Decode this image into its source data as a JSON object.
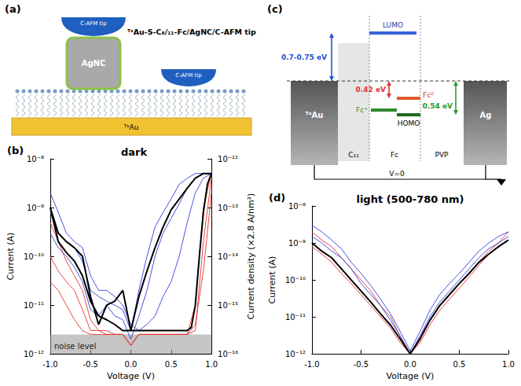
{
  "chart_data": [
    {
      "type": "line",
      "panel": "(b)",
      "title": "dark",
      "x_label": "Voltage (V)",
      "y_label": "Current (A)",
      "y2_label": "Current density (×2.8 A/nm²)",
      "log": "y",
      "grid": false,
      "xlim": [
        -1,
        1
      ],
      "xticks": [
        {
          "value": -1,
          "label": "-1.0"
        },
        {
          "value": -0.5,
          "label": "-0.5"
        },
        {
          "value": 0,
          "label": "0.0"
        },
        {
          "value": 0.5,
          "label": "0.5"
        },
        {
          "value": 1,
          "label": "1.0"
        }
      ],
      "ylim": [
        1e-12,
        1e-08
      ],
      "yticks": [
        {
          "value": 1e-12,
          "label": "10⁻¹²"
        },
        {
          "value": 1e-11,
          "label": "10⁻¹¹"
        },
        {
          "value": 1e-10,
          "label": "10⁻¹⁰"
        },
        {
          "value": 1e-09,
          "label": "10⁻⁹"
        },
        {
          "value": 1e-08,
          "label": "10⁻⁸"
        }
      ],
      "y2lim": [
        1e-16,
        1e-12
      ],
      "y2ticks": [
        {
          "value": 1e-16,
          "label": "10⁻¹⁶"
        },
        {
          "value": 1e-15,
          "label": "10⁻¹⁵"
        },
        {
          "value": 1e-14,
          "label": "10⁻¹⁴"
        },
        {
          "value": 1e-13,
          "label": "10⁻¹³"
        },
        {
          "value": 1e-12,
          "label": "10⁻¹²"
        }
      ],
      "noise_level": {
        "value": 2.5e-12,
        "label": "noise level"
      },
      "x": [
        -1,
        -0.9,
        -0.8,
        -0.7,
        -0.6,
        -0.5,
        -0.4,
        -0.3,
        -0.2,
        -0.1,
        0,
        0.1,
        0.2,
        0.3,
        0.4,
        0.5,
        0.6,
        0.7,
        0.8,
        0.9,
        1
      ],
      "series": [
        {
          "color": "#e8302f",
          "values": [
            1e-10,
            5e-11,
            3e-11,
            2e-11,
            8e-12,
            3e-12,
            3e-12,
            2.5e-12,
            2.5e-12,
            2.5e-12,
            1.5e-12,
            2.5e-12,
            2.5e-12,
            2.5e-12,
            2.5e-12,
            2.5e-12,
            2.5e-12,
            2.5e-12,
            3e-12,
            2e-10,
            4e-09
          ]
        },
        {
          "color": "#e8302f",
          "values": [
            3e-11,
            2e-11,
            1e-11,
            5e-12,
            3e-12,
            2.5e-12,
            2.5e-12,
            2.5e-12,
            2.5e-12,
            2.5e-12,
            1.5e-12,
            2.5e-12,
            2.5e-12,
            2.5e-12,
            2.5e-12,
            2.5e-12,
            2.5e-12,
            2.5e-12,
            1e-11,
            1e-09,
            5e-09
          ]
        },
        {
          "color": "#e8302f",
          "values": [
            5e-10,
            2e-10,
            8e-11,
            4e-11,
            2e-11,
            5e-12,
            3e-12,
            3e-12,
            2.5e-12,
            2.5e-12,
            1.5e-12,
            2.5e-12,
            2.5e-12,
            2.5e-12,
            2.5e-12,
            2.5e-12,
            2.5e-12,
            2.5e-12,
            4e-12,
            5e-11,
            2e-09
          ]
        },
        {
          "color": "#2f3fe0",
          "values": [
            8e-10,
            3e-10,
            2e-10,
            1.5e-10,
            8e-11,
            2e-11,
            1.5e-11,
            1.2e-11,
            1e-11,
            8e-12,
            3e-12,
            2e-11,
            1e-10,
            4e-10,
            8e-10,
            1.5e-09,
            3e-09,
            4e-09,
            5e-09,
            5e-09,
            5e-09
          ]
        },
        {
          "color": "#2f3fe0",
          "values": [
            3e-10,
            1.5e-10,
            1e-10,
            6e-11,
            3e-11,
            8e-12,
            6e-12,
            1e-11,
            6e-12,
            5e-12,
            2e-12,
            6e-12,
            2e-11,
            1e-10,
            3e-10,
            6e-10,
            1.2e-09,
            2.5e-09,
            4e-09,
            5e-09,
            5e-09
          ]
        },
        {
          "color": "#2f3fe0",
          "values": [
            2e-09,
            8e-10,
            3e-10,
            2e-10,
            1.5e-10,
            4e-11,
            2e-11,
            2e-11,
            1.5e-11,
            1e-11,
            4e-12,
            3e-12,
            4e-12,
            6e-12,
            1.5e-11,
            3e-11,
            1e-10,
            5e-10,
            2e-09,
            4e-09,
            5e-09
          ]
        },
        {
          "color": "#000000",
          "line_style": "thick",
          "x": [
            0,
            0.1,
            0.2,
            0.3,
            0.4,
            0.5,
            0.6,
            0.7,
            0.75,
            0.8,
            0.85,
            0.9,
            0.95,
            1,
            0.9,
            0.8,
            0.7,
            0.6,
            0.5,
            0.4,
            0.3,
            0.2,
            0.1,
            0,
            -0.1,
            -0.2,
            -0.3,
            -0.4,
            -0.5,
            -0.6,
            -0.7,
            -0.8,
            -0.9,
            -1,
            -0.9,
            -0.8,
            -0.7,
            -0.6,
            -0.5,
            -0.4,
            -0.3,
            -0.2,
            -0.1,
            0
          ],
          "values": [
            3e-12,
            3e-12,
            3e-12,
            3e-12,
            3e-12,
            3e-12,
            3e-12,
            3e-12,
            3.5e-12,
            1e-11,
            1e-10,
            8e-10,
            3e-09,
            5e-09,
            5e-09,
            4e-09,
            2.5e-09,
            1.5e-09,
            9e-10,
            4e-10,
            1.5e-10,
            5e-11,
            1.5e-11,
            3e-12,
            2e-11,
            1.2e-11,
            1e-11,
            4e-12,
            1.5e-11,
            1e-10,
            1.5e-10,
            2e-10,
            3e-10,
            1e-09,
            2e-10,
            1.2e-10,
            8e-11,
            4e-11,
            1.2e-11,
            6e-12,
            5e-12,
            4e-12,
            3e-12,
            3e-12
          ]
        }
      ]
    },
    {
      "type": "line",
      "panel": "(d)",
      "title": "light (500-780 nm)",
      "x_label": "Voltage (V)",
      "y_label": "Current (A)",
      "log": "y",
      "grid": false,
      "xlim": [
        -1,
        1
      ],
      "xticks": [
        {
          "value": -1,
          "label": "-1.0"
        },
        {
          "value": -0.5,
          "label": "-0.5"
        },
        {
          "value": 0,
          "label": "0.0"
        },
        {
          "value": 0.5,
          "label": "0.5"
        },
        {
          "value": 1,
          "label": "1.0"
        }
      ],
      "ylim": [
        1e-12,
        1e-08
      ],
      "yticks": [
        {
          "value": 1e-12,
          "label": "10⁻¹²"
        },
        {
          "value": 1e-11,
          "label": "10⁻¹¹"
        },
        {
          "value": 1e-10,
          "label": "10⁻¹⁰"
        },
        {
          "value": 1e-09,
          "label": "10⁻⁹"
        },
        {
          "value": 1e-08,
          "label": "10⁻⁸"
        }
      ],
      "x": [
        -1,
        -0.9,
        -0.8,
        -0.7,
        -0.6,
        -0.5,
        -0.4,
        -0.3,
        -0.2,
        -0.1,
        0,
        0.1,
        0.2,
        0.3,
        0.4,
        0.5,
        0.6,
        0.7,
        0.8,
        0.9,
        1
      ],
      "series": [
        {
          "color": "#e8302f",
          "values": [
            8e-10,
            5e-10,
            3e-10,
            1.5e-10,
            8e-11,
            4e-11,
            2e-11,
            1e-11,
            5e-12,
            2e-12,
            1e-12,
            2e-12,
            6e-12,
            1.5e-11,
            3e-11,
            6e-11,
            1.2e-10,
            2.5e-10,
            5e-10,
            8e-10,
            1.2e-09
          ]
        },
        {
          "color": "#e8302f",
          "values": [
            2e-09,
            1.2e-09,
            8e-10,
            4e-10,
            2e-10,
            1e-10,
            5e-11,
            2e-11,
            1e-11,
            3e-12,
            1e-12,
            3e-12,
            8e-12,
            2e-11,
            4e-11,
            8e-11,
            1.5e-10,
            3e-10,
            6e-10,
            1e-09,
            2e-09
          ]
        },
        {
          "color": "#2f3fe0",
          "values": [
            1.5e-09,
            1e-09,
            6e-10,
            4e-10,
            2e-10,
            8e-11,
            4e-11,
            2e-11,
            8e-12,
            3e-12,
            1e-12,
            3e-12,
            1e-11,
            2.5e-11,
            5e-11,
            1e-10,
            2e-10,
            4e-10,
            7e-10,
            1e-09,
            1.5e-09
          ]
        },
        {
          "color": "#2f3fe0",
          "values": [
            3e-09,
            2e-09,
            1.2e-09,
            7e-10,
            3e-10,
            1.5e-10,
            7e-11,
            3e-11,
            1.2e-11,
            4e-12,
            1.2e-12,
            4e-12,
            1.5e-11,
            4e-11,
            8e-11,
            1.5e-10,
            3e-10,
            6e-10,
            1e-09,
            1.5e-09,
            2e-09
          ]
        },
        {
          "color": "#000000",
          "line_style": "thick",
          "values": [
            1e-09,
            6e-10,
            4e-10,
            2e-10,
            1e-10,
            5e-11,
            2.5e-11,
            1.2e-11,
            6e-12,
            2.5e-12,
            1e-12,
            2.5e-12,
            8e-12,
            2e-11,
            4e-11,
            8e-11,
            1.5e-10,
            3e-10,
            5e-10,
            8e-10,
            1.2e-09
          ]
        }
      ]
    }
  ],
  "figure_a": {
    "panel": "(a)",
    "title": "ᵀˢAu-S-C₈/₁₁-Fc/AgNC/C-AFM tip",
    "tip_labels": [
      "C-AFM tip",
      "C-AFM tip"
    ],
    "nanocube": "AgNC",
    "substrate": "ᵀˢAu"
  },
  "figure_c": {
    "panel": "(c)",
    "lumo": "LUMO",
    "homo": "HOMO",
    "fc_neutral": "Fc⁰",
    "fc_oxidized": "Fc⁺",
    "barrier_lumo": "0.7-0.75 eV",
    "barrier_fc": "0.42 eV",
    "barrier_homo": "0.54 eV",
    "left_electrode": "ᵀˢAu",
    "right_electrode": "Ag",
    "layers": [
      "C₁₁",
      "Fc",
      "PVP"
    ],
    "bias": "V=0"
  }
}
